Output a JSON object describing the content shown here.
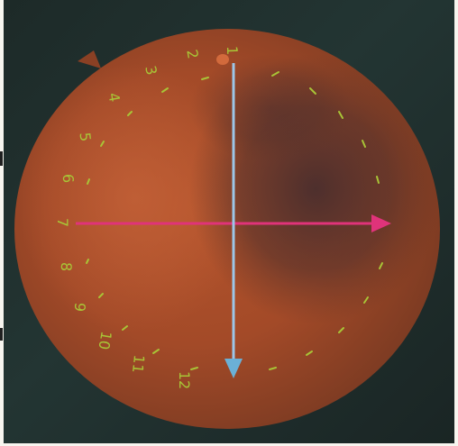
{
  "fundus": {
    "clock_labels": [
      "1",
      "2",
      "3",
      "4",
      "5",
      "6",
      "7",
      "8",
      "9",
      "10",
      "11",
      "12"
    ],
    "colors": {
      "label": "#a8c437",
      "horizontal_arrow": "#e0337a",
      "vertical_arrow": "#9cc6e8",
      "retina_center": "#b4542c",
      "retina_edge": "#7a3a22",
      "dark_region": "#3e2a2e"
    }
  }
}
